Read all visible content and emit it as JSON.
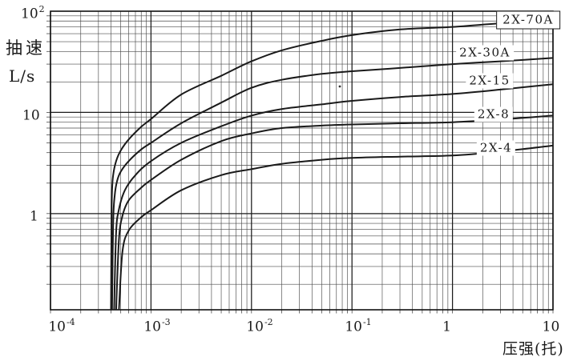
{
  "chart_data": {
    "type": "line",
    "title": "",
    "xlabel": "压强(托)",
    "ylabel_lines": [
      "抽速",
      "L/s"
    ],
    "x_scale": "log",
    "y_scale": "log",
    "xlim": [
      0.0001,
      10
    ],
    "ylim": [
      0.112,
      100
    ],
    "grid": "full log-log minor gridlines, both axes",
    "legend_position": "labels beside curves, right side",
    "x_ticks": [
      {
        "base": "10",
        "sup": "-4"
      },
      {
        "base": "10",
        "sup": "-3"
      },
      {
        "base": "10",
        "sup": "-2"
      },
      {
        "base": "10",
        "sup": "-1"
      },
      {
        "base": "1",
        "sup": ""
      },
      {
        "base": "10",
        "sup": ""
      }
    ],
    "y_ticks": [
      {
        "base": "10",
        "sup": "2"
      },
      {
        "base": "10",
        "sup": ""
      },
      {
        "base": "1",
        "sup": ""
      }
    ],
    "series": [
      {
        "name": "2X-70A",
        "boxed": true,
        "label_pos": [
          5.7,
          82
        ],
        "points": [
          [
            0.0004,
            0.112
          ],
          [
            0.000405,
            0.9
          ],
          [
            0.00041,
            1.7
          ],
          [
            0.00042,
            2.4
          ],
          [
            0.00045,
            3.3
          ],
          [
            0.0005,
            4.2
          ],
          [
            0.0006,
            5.4
          ],
          [
            0.0008,
            7.2
          ],
          [
            0.001,
            8.6
          ],
          [
            0.002,
            15
          ],
          [
            0.005,
            23
          ],
          [
            0.01,
            32
          ],
          [
            0.02,
            41
          ],
          [
            0.05,
            51
          ],
          [
            0.1,
            58
          ],
          [
            0.3,
            66
          ],
          [
            1,
            70
          ],
          [
            3,
            76
          ],
          [
            10,
            82
          ]
        ]
      },
      {
        "name": "2X-30A",
        "boxed": false,
        "label_pos": [
          2.1,
          39
        ],
        "points": [
          [
            0.00041,
            0.112
          ],
          [
            0.00042,
            0.8
          ],
          [
            0.000435,
            1.5
          ],
          [
            0.00046,
            2.1
          ],
          [
            0.0005,
            2.6
          ],
          [
            0.0006,
            3.3
          ],
          [
            0.0008,
            4.3
          ],
          [
            0.001,
            5.0
          ],
          [
            0.002,
            7.8
          ],
          [
            0.005,
            12.5
          ],
          [
            0.01,
            17.5
          ],
          [
            0.02,
            21
          ],
          [
            0.05,
            24
          ],
          [
            0.1,
            25.5
          ],
          [
            0.3,
            27.5
          ],
          [
            1,
            30
          ],
          [
            3,
            32
          ],
          [
            10,
            34.5
          ]
        ]
      },
      {
        "name": "2X-15",
        "boxed": false,
        "label_pos": [
          2.35,
          20.5
        ],
        "points": [
          [
            0.00043,
            0.112
          ],
          [
            0.00045,
            0.65
          ],
          [
            0.00048,
            1.1
          ],
          [
            0.00055,
            1.7
          ],
          [
            0.0007,
            2.4
          ],
          [
            0.001,
            3.3
          ],
          [
            0.002,
            5.0
          ],
          [
            0.005,
            7.3
          ],
          [
            0.01,
            9.3
          ],
          [
            0.02,
            10.8
          ],
          [
            0.05,
            12
          ],
          [
            0.1,
            13
          ],
          [
            0.3,
            14.2
          ],
          [
            1,
            15.2
          ],
          [
            3,
            16.8
          ],
          [
            10,
            19
          ]
        ]
      },
      {
        "name": "2X-8",
        "boxed": false,
        "label_pos": [
          2.55,
          9.6
        ],
        "points": [
          [
            0.00045,
            0.112
          ],
          [
            0.00048,
            0.55
          ],
          [
            0.00052,
            0.95
          ],
          [
            0.0006,
            1.35
          ],
          [
            0.0008,
            1.8
          ],
          [
            0.001,
            2.15
          ],
          [
            0.002,
            3.4
          ],
          [
            0.005,
            5.2
          ],
          [
            0.01,
            6.2
          ],
          [
            0.02,
            7.0
          ],
          [
            0.05,
            7.4
          ],
          [
            0.1,
            7.6
          ],
          [
            0.3,
            7.8
          ],
          [
            1,
            8.0
          ],
          [
            3,
            8.5
          ],
          [
            10,
            9.3
          ]
        ]
      },
      {
        "name": "2X-4",
        "boxed": false,
        "label_pos": [
          2.7,
          4.4
        ],
        "points": [
          [
            0.00048,
            0.112
          ],
          [
            0.00052,
            0.42
          ],
          [
            0.0006,
            0.68
          ],
          [
            0.0008,
            0.92
          ],
          [
            0.001,
            1.08
          ],
          [
            0.002,
            1.7
          ],
          [
            0.005,
            2.4
          ],
          [
            0.01,
            2.75
          ],
          [
            0.02,
            3.1
          ],
          [
            0.05,
            3.4
          ],
          [
            0.1,
            3.55
          ],
          [
            0.3,
            3.65
          ],
          [
            1,
            3.75
          ],
          [
            3,
            4.1
          ],
          [
            10,
            4.7
          ]
        ]
      }
    ]
  },
  "colors": {
    "background": "#ffffff",
    "curve": "#1a1a1a",
    "grid_minor": "#4a4a4a",
    "grid_major": "#1b1b1b",
    "border": "#111111",
    "text": "#1a1a1a"
  }
}
